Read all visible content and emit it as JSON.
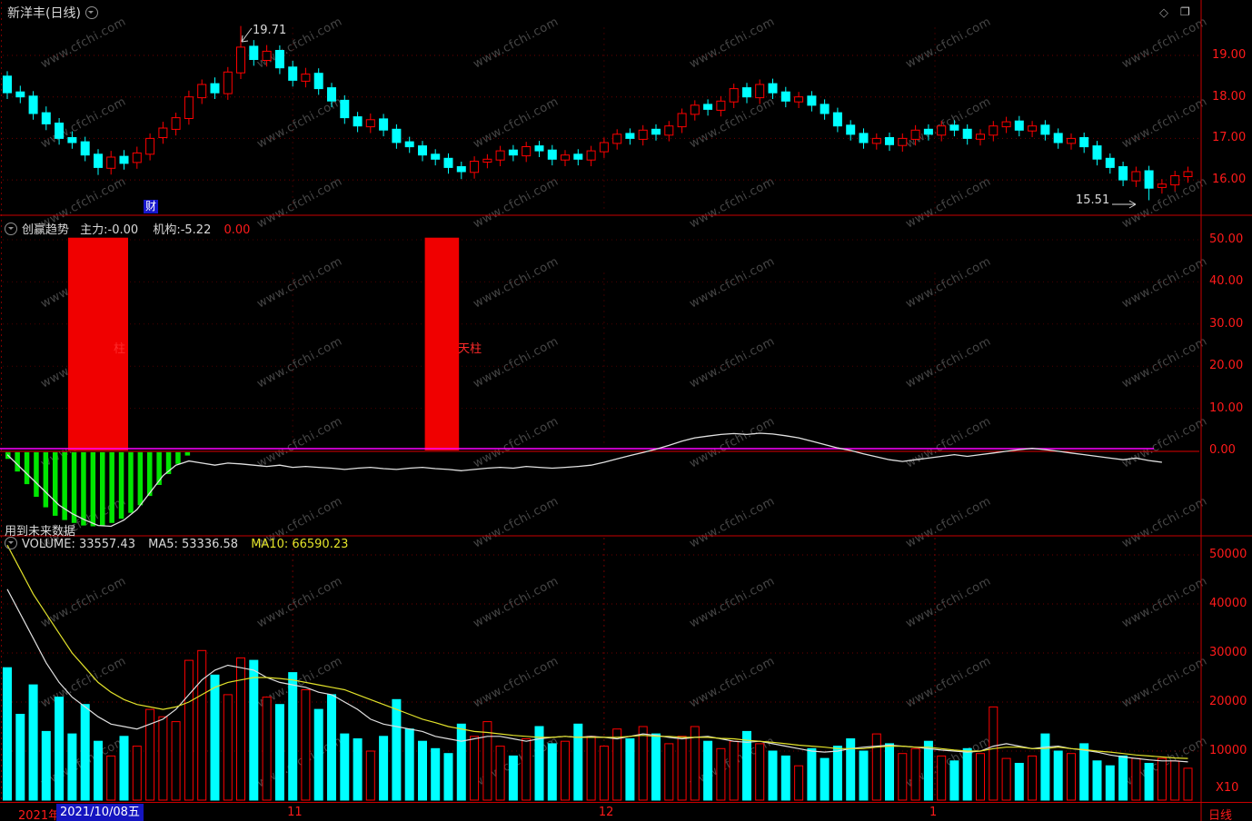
{
  "title_bar": {
    "symbol": "新洋丰(日线)",
    "diamond_icon": "◇",
    "window_icon": "❐"
  },
  "watermark": {
    "text": "www.cfchi.com"
  },
  "price_panel": {
    "annotation_high": "19.71",
    "annotation_low": "15.51",
    "news_badge": "财"
  },
  "indicator_panel": {
    "header": {
      "name": "创赢趋势",
      "main": "主力:-0.00",
      "inst": "机构:-5.22",
      "value": "0.00"
    },
    "note": "用到未来数据"
  },
  "volume_panel": {
    "header": {
      "volume": "VOLUME: 33557.43",
      "ma5": "MA5: 53336.58",
      "ma10": "MA10: 66590.23"
    },
    "unit": "X10"
  },
  "status_bar": {
    "left_prefix": "2021年1",
    "date_cursor": "2021/10/08五",
    "period": "日线"
  },
  "colors": {
    "up": "#ff0000",
    "down": "#00ffff",
    "ma5": "#e0e0e0",
    "ma10": "#e2e22a",
    "axis_text": "#ff1a1a",
    "pillar": "#f00000",
    "green": "#00e600",
    "zero_magenta": "#ff00ff",
    "zero_red": "#e00000",
    "separator": "#c80000"
  },
  "chart_data": {
    "type": "candlestick",
    "title": "新洋丰(日线)",
    "legend_position": "top-left",
    "axes": {
      "price_ticks": [
        {
          "label": "19.00",
          "v": 19
        },
        {
          "label": "18.00",
          "v": 18
        },
        {
          "label": "17.00",
          "v": 17
        },
        {
          "label": "16.00",
          "v": 16
        }
      ],
      "indicator_ticks": [
        {
          "label": "50.00",
          "v": 50
        },
        {
          "label": "40.00",
          "v": 40
        },
        {
          "label": "30.00",
          "v": 30
        },
        {
          "label": "20.00",
          "v": 20
        },
        {
          "label": "10.00",
          "v": 10
        },
        {
          "label": "0.00",
          "v": 0
        }
      ],
      "volume_ticks": [
        {
          "label": "50000",
          "v": 50000
        },
        {
          "label": "40000",
          "v": 40000
        },
        {
          "label": "30000",
          "v": 30000
        },
        {
          "label": "20000",
          "v": 20000
        },
        {
          "label": "10000",
          "v": 10000
        }
      ],
      "price_ylim": [
        15.4,
        19.9
      ],
      "indicator_ylim": [
        -20,
        52
      ],
      "volume_ylim": [
        0,
        52000
      ]
    },
    "month_ticks": [
      {
        "label": "11",
        "i": 22
      },
      {
        "label": "12",
        "i": 46
      },
      {
        "label": "1",
        "i": 71.5
      }
    ],
    "candles": {
      "high_annotation": 19.71,
      "low_annotation": 15.51,
      "ohlc": [
        [
          18.5,
          18.62,
          17.95,
          18.1
        ],
        [
          18.12,
          18.27,
          17.85,
          18.0
        ],
        [
          18.02,
          18.14,
          17.45,
          17.6
        ],
        [
          17.62,
          17.77,
          17.2,
          17.35
        ],
        [
          17.37,
          17.49,
          16.85,
          17.0
        ],
        [
          17.02,
          17.17,
          16.75,
          16.9
        ],
        [
          16.92,
          17.04,
          16.45,
          16.6
        ],
        [
          16.62,
          16.74,
          16.12,
          16.3
        ],
        [
          16.28,
          16.7,
          16.13,
          16.55
        ],
        [
          16.57,
          16.72,
          16.25,
          16.4
        ],
        [
          16.42,
          16.8,
          16.27,
          16.65
        ],
        [
          16.62,
          17.12,
          16.47,
          17.0
        ],
        [
          17.02,
          17.4,
          16.87,
          17.25
        ],
        [
          17.22,
          17.62,
          17.07,
          17.5
        ],
        [
          17.48,
          18.15,
          17.33,
          18.0
        ],
        [
          17.98,
          18.42,
          17.83,
          18.3
        ],
        [
          18.32,
          18.47,
          17.95,
          18.1
        ],
        [
          18.08,
          18.72,
          17.93,
          18.6
        ],
        [
          18.58,
          19.71,
          18.43,
          19.2
        ],
        [
          19.22,
          19.37,
          18.75,
          18.9
        ],
        [
          18.88,
          19.25,
          18.73,
          19.1
        ],
        [
          19.12,
          19.24,
          18.55,
          18.7
        ],
        [
          18.72,
          18.87,
          18.25,
          18.4
        ],
        [
          18.38,
          18.7,
          18.23,
          18.55
        ],
        [
          18.57,
          18.69,
          18.05,
          18.2
        ],
        [
          18.22,
          18.34,
          17.75,
          17.9
        ],
        [
          17.92,
          18.04,
          17.35,
          17.5
        ],
        [
          17.52,
          17.64,
          17.15,
          17.3
        ],
        [
          17.28,
          17.6,
          17.13,
          17.45
        ],
        [
          17.47,
          17.59,
          17.05,
          17.2
        ],
        [
          17.22,
          17.34,
          16.75,
          16.9
        ],
        [
          16.92,
          17.04,
          16.65,
          16.8
        ],
        [
          16.82,
          16.94,
          16.45,
          16.6
        ],
        [
          16.62,
          16.74,
          16.35,
          16.5
        ],
        [
          16.52,
          16.64,
          16.15,
          16.3
        ],
        [
          16.32,
          16.44,
          16.02,
          16.2
        ],
        [
          16.18,
          16.57,
          16.03,
          16.45
        ],
        [
          16.43,
          16.62,
          16.28,
          16.5
        ],
        [
          16.48,
          16.82,
          16.33,
          16.7
        ],
        [
          16.72,
          16.84,
          16.45,
          16.6
        ],
        [
          16.58,
          16.92,
          16.43,
          16.8
        ],
        [
          16.82,
          16.94,
          16.55,
          16.7
        ],
        [
          16.72,
          16.84,
          16.35,
          16.5
        ],
        [
          16.48,
          16.72,
          16.33,
          16.6
        ],
        [
          16.62,
          16.74,
          16.35,
          16.5
        ],
        [
          16.48,
          16.82,
          16.33,
          16.7
        ],
        [
          16.68,
          17.02,
          16.53,
          16.9
        ],
        [
          16.88,
          17.22,
          16.73,
          17.1
        ],
        [
          17.12,
          17.24,
          16.85,
          17.0
        ],
        [
          16.98,
          17.32,
          16.83,
          17.2
        ],
        [
          17.22,
          17.34,
          16.95,
          17.1
        ],
        [
          17.08,
          17.42,
          16.93,
          17.3
        ],
        [
          17.28,
          17.72,
          17.13,
          17.6
        ],
        [
          17.58,
          17.92,
          17.43,
          17.8
        ],
        [
          17.82,
          17.94,
          17.55,
          17.7
        ],
        [
          17.68,
          18.02,
          17.53,
          17.9
        ],
        [
          17.88,
          18.32,
          17.73,
          18.2
        ],
        [
          18.22,
          18.34,
          17.85,
          18.0
        ],
        [
          17.98,
          18.42,
          17.83,
          18.3
        ],
        [
          18.32,
          18.44,
          17.95,
          18.1
        ],
        [
          18.12,
          18.24,
          17.75,
          17.9
        ],
        [
          17.88,
          18.12,
          17.73,
          18.0
        ],
        [
          18.02,
          18.14,
          17.65,
          17.8
        ],
        [
          17.82,
          17.94,
          17.45,
          17.6
        ],
        [
          17.62,
          17.74,
          17.15,
          17.3
        ],
        [
          17.32,
          17.44,
          16.95,
          17.1
        ],
        [
          17.12,
          17.24,
          16.75,
          16.9
        ],
        [
          16.88,
          17.12,
          16.73,
          17.0
        ],
        [
          17.02,
          17.14,
          16.7,
          16.85
        ],
        [
          16.83,
          17.12,
          16.68,
          17.0
        ],
        [
          16.98,
          17.32,
          16.83,
          17.2
        ],
        [
          17.22,
          17.34,
          16.95,
          17.1
        ],
        [
          17.08,
          17.42,
          16.93,
          17.3
        ],
        [
          17.32,
          17.44,
          17.05,
          17.2
        ],
        [
          17.22,
          17.34,
          16.85,
          17.0
        ],
        [
          16.98,
          17.22,
          16.83,
          17.1
        ],
        [
          17.08,
          17.42,
          16.93,
          17.3
        ],
        [
          17.28,
          17.52,
          17.13,
          17.4
        ],
        [
          17.42,
          17.54,
          17.05,
          17.2
        ],
        [
          17.18,
          17.42,
          17.03,
          17.3
        ],
        [
          17.32,
          17.44,
          16.95,
          17.1
        ],
        [
          17.12,
          17.24,
          16.75,
          16.9
        ],
        [
          16.88,
          17.12,
          16.73,
          17.0
        ],
        [
          17.02,
          17.14,
          16.65,
          16.8
        ],
        [
          16.82,
          16.94,
          16.35,
          16.5
        ],
        [
          16.52,
          16.64,
          16.15,
          16.3
        ],
        [
          16.32,
          16.44,
          15.85,
          16.0
        ],
        [
          15.98,
          16.32,
          15.83,
          16.2
        ],
        [
          16.22,
          16.34,
          15.51,
          15.8
        ],
        [
          15.82,
          16.02,
          15.67,
          15.9
        ],
        [
          15.88,
          16.22,
          15.73,
          16.1
        ],
        [
          16.08,
          16.32,
          15.93,
          16.2
        ]
      ]
    },
    "indicator": {
      "pillars": [
        {
          "from": 5,
          "to": 9,
          "value": 50.5,
          "label": "柱"
        },
        {
          "from": 32.5,
          "to": 34.5,
          "value": 50.5,
          "label": "天柱"
        }
      ],
      "green_stripes": [
        -2,
        -5,
        -8,
        -11,
        -13.5,
        -15.5,
        -16.5,
        -17.2,
        -17.8,
        -18,
        -17.8,
        -17.2,
        -16.2,
        -14.8,
        -13,
        -10.8,
        -8.2,
        -5.6,
        -3.2,
        -1.2
      ],
      "white_line": [
        -1,
        -4,
        -7,
        -10,
        -13,
        -15,
        -16.5,
        -17.8,
        -18,
        -16.5,
        -14,
        -10,
        -6,
        -3.5,
        -2.5,
        -3,
        -3.5,
        -3,
        -3.2,
        -3.5,
        -3.8,
        -3.5,
        -4,
        -3.8,
        -4,
        -4.2,
        -4.5,
        -4.2,
        -4,
        -4.3,
        -4.5,
        -4.2,
        -4,
        -4.3,
        -4.5,
        -4.8,
        -4.5,
        -4.2,
        -4,
        -4.2,
        -3.8,
        -4,
        -4.2,
        -4,
        -3.8,
        -3.5,
        -2.8,
        -2,
        -1.2,
        -0.5,
        0.3,
        1.2,
        2.2,
        3,
        3.4,
        3.8,
        4,
        3.8,
        4.1,
        3.9,
        3.5,
        3,
        2.2,
        1.4,
        0.6,
        0,
        -0.8,
        -1.5,
        -2.2,
        -2.6,
        -2.2,
        -1.8,
        -1.4,
        -1,
        -1.4,
        -1,
        -0.6,
        -0.2,
        0.2,
        0.5,
        0.2,
        -0.2,
        -0.6,
        -1,
        -1.4,
        -1.8,
        -2.2,
        -1.8,
        -2.4,
        -2.8
      ]
    },
    "volume": {
      "values": [
        27000,
        17500,
        23500,
        14000,
        21000,
        13500,
        19500,
        12000,
        9000,
        13000,
        11000,
        18500,
        17000,
        16000,
        28500,
        30500,
        25500,
        21500,
        29000,
        28500,
        21000,
        19500,
        26000,
        22500,
        18500,
        21500,
        13500,
        12500,
        10000,
        13000,
        20500,
        14500,
        12000,
        10500,
        9500,
        15500,
        13000,
        16000,
        11000,
        9000,
        12500,
        15000,
        11500,
        12000,
        15500,
        13000,
        11000,
        14500,
        12500,
        15000,
        13500,
        11500,
        13000,
        15000,
        12000,
        10500,
        12000,
        14000,
        11500,
        10000,
        9000,
        7000,
        10500,
        8500,
        11000,
        12500,
        10000,
        13500,
        11500,
        9500,
        10500,
        12000,
        9000,
        8000,
        10500,
        9500,
        19000,
        8500,
        7500,
        9000,
        13500,
        10000,
        9500,
        11500,
        8000,
        7000,
        9000,
        8500,
        7500,
        8500,
        8000,
        6500
      ],
      "ma5": [
        43000,
        38000,
        33000,
        28000,
        24000,
        21000,
        19000,
        17000,
        15500,
        15000,
        14500,
        15500,
        16500,
        18500,
        21500,
        24500,
        26500,
        27500,
        27000,
        26500,
        25000,
        24000,
        23500,
        23000,
        22000,
        21500,
        20000,
        18500,
        16500,
        15500,
        15000,
        14500,
        14000,
        13000,
        12500,
        12000,
        12500,
        13000,
        13000,
        12500,
        12000,
        12500,
        12800,
        13000,
        12800,
        13000,
        12800,
        12500,
        13000,
        13500,
        13200,
        12800,
        12500,
        12800,
        13000,
        12500,
        12000,
        11800,
        12000,
        11500,
        11000,
        10500,
        10000,
        9800,
        10000,
        10500,
        10800,
        11000,
        11200,
        11000,
        10800,
        10500,
        10200,
        10000,
        9800,
        10000,
        11000,
        11500,
        11000,
        10500,
        10800,
        11000,
        10500,
        10200,
        9800,
        9200,
        8800,
        8500,
        8200,
        8000,
        8000,
        7800
      ],
      "ma10": [
        52000,
        47000,
        42000,
        38000,
        34000,
        30000,
        27000,
        24000,
        22000,
        20500,
        19500,
        19000,
        18500,
        19000,
        20000,
        21500,
        23000,
        24000,
        24500,
        25000,
        25000,
        24800,
        24500,
        24000,
        23500,
        23000,
        22500,
        21500,
        20500,
        19500,
        18500,
        17500,
        16500,
        15800,
        15000,
        14500,
        14000,
        13800,
        13500,
        13200,
        13000,
        12800,
        12800,
        13000,
        12800,
        12800,
        12800,
        12800,
        13000,
        13200,
        13000,
        13000,
        12800,
        12800,
        12800,
        12600,
        12500,
        12200,
        12000,
        11800,
        11500,
        11200,
        11000,
        10800,
        10500,
        10500,
        10500,
        10800,
        11000,
        11000,
        10800,
        10800,
        10500,
        10200,
        10000,
        10000,
        10500,
        10800,
        10800,
        10500,
        10500,
        10800,
        10500,
        10300,
        10000,
        9800,
        9500,
        9200,
        9000,
        8800,
        8600,
        8500
      ]
    }
  }
}
